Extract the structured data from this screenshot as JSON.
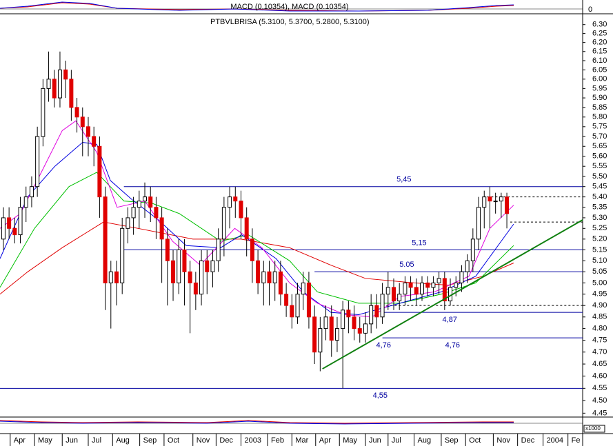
{
  "chart_data": {
    "type": "candlestick",
    "title": "PTBVLBRISA (5.3100, 5.3700, 5.2800, 5.3100)",
    "indicator_title": "MACD (0.10354), MACD (0.10354)",
    "indicator_tick": 0,
    "volume_scale_label": "x1000",
    "log_scale": true,
    "ylim": [
      4.44,
      6.33
    ],
    "yticks": [
      {
        "value": 6.3,
        "label": "6.30"
      },
      6.25,
      {
        "value": 6.2,
        "label": "6.20"
      },
      6.15,
      {
        "value": 6.1,
        "label": "6.10"
      },
      6.05,
      {
        "value": 6.0,
        "label": "6.00"
      },
      5.95,
      {
        "value": 5.9,
        "label": "5.90"
      },
      5.85,
      {
        "value": 5.8,
        "label": "5.80"
      },
      5.75,
      {
        "value": 5.7,
        "label": "5.70"
      },
      5.65,
      {
        "value": 5.6,
        "label": "5.60"
      },
      5.55,
      {
        "value": 5.5,
        "label": "5.50"
      },
      5.45,
      {
        "value": 5.4,
        "label": "5.40"
      },
      5.35,
      {
        "value": 5.3,
        "label": "5.30"
      },
      5.25,
      {
        "value": 5.2,
        "label": "5.20"
      },
      5.15,
      {
        "value": 5.1,
        "label": "5.10"
      },
      5.05,
      {
        "value": 5.0,
        "label": "5.00"
      },
      4.95,
      {
        "value": 4.9,
        "label": "4.90"
      },
      4.85,
      {
        "value": 4.8,
        "label": "4.80"
      },
      4.75,
      {
        "value": 4.7,
        "label": "4.70"
      },
      4.65,
      {
        "value": 4.6,
        "label": "4.60"
      },
      4.55,
      {
        "value": 4.5,
        "label": "4.50"
      },
      4.45
    ],
    "xlim": [
      -0.6,
      102.4
    ],
    "xticks": [
      {
        "value": 1.2,
        "label": "Apr"
      },
      {
        "value": 5.5,
        "label": "May"
      },
      {
        "value": 10.4,
        "label": "Jun"
      },
      {
        "value": 15,
        "label": "Jul"
      },
      {
        "value": 19.3,
        "label": "Aug"
      },
      {
        "value": 24.1,
        "label": "Sep"
      },
      {
        "value": 28.4,
        "label": "Oct"
      },
      {
        "value": 33.5,
        "label": "Nov"
      },
      {
        "value": 37.6,
        "label": "Dec"
      },
      {
        "value": 42,
        "label": "2003"
      },
      {
        "value": 46.7,
        "label": "Feb"
      },
      {
        "value": 51,
        "label": "Mar"
      },
      {
        "value": 55.2,
        "label": "Apr"
      },
      {
        "value": 59.4,
        "label": "May"
      },
      {
        "value": 64,
        "label": "Jun"
      },
      {
        "value": 68,
        "label": "Jul"
      },
      {
        "value": 72.6,
        "label": "Aug"
      },
      {
        "value": 77.4,
        "label": "Sep"
      },
      {
        "value": 81.7,
        "label": "Oct"
      },
      {
        "value": 86.6,
        "label": "Nov"
      },
      {
        "value": 90.9,
        "label": "Dec"
      },
      {
        "value": 95.4,
        "label": "2004"
      },
      {
        "value": 99.8,
        "label": "Fe"
      }
    ],
    "up_color": "#ffffff",
    "down_color": "#e00000",
    "open": [
      5.2,
      5.3,
      5.25,
      5.22,
      5.35,
      5.4,
      5.45,
      5.7,
      5.95,
      6.0,
      5.9,
      6.05,
      6.0,
      5.85,
      5.8,
      5.75,
      5.7,
      5.65,
      5.4,
      5.0,
      5.05,
      5.0,
      5.25,
      5.3,
      5.35,
      5.38,
      5.4,
      5.35,
      5.3,
      5.2,
      5.1,
      5.0,
      5.15,
      5.05,
      5.0,
      4.95,
      5.1,
      5.05,
      5.1,
      5.2,
      5.35,
      5.4,
      5.38,
      5.3,
      5.2,
      5.1,
      5.0,
      5.05,
      5.0,
      5.05,
      4.95,
      4.9,
      4.85,
      4.95,
      5.0,
      4.85,
      4.7,
      4.8,
      4.85,
      4.75,
      4.8,
      4.88,
      4.85,
      4.8,
      4.78,
      4.82,
      4.9,
      4.85,
      4.95,
      4.98,
      4.92,
      4.95,
      5.0,
      4.98,
      4.95,
      5.0,
      4.98,
      5.0,
      5.02,
      4.92,
      4.98,
      5.0,
      5.05,
      5.1,
      5.2,
      5.35,
      5.4,
      5.38,
      5.38,
      5.4
    ],
    "high": [
      5.35,
      5.35,
      5.3,
      5.4,
      5.45,
      5.5,
      5.75,
      6.0,
      6.15,
      6.05,
      6.15,
      6.1,
      6.05,
      5.9,
      5.85,
      5.8,
      5.75,
      5.7,
      5.45,
      5.1,
      5.1,
      5.3,
      5.35,
      5.4,
      5.43,
      5.47,
      5.45,
      5.4,
      5.35,
      5.25,
      5.15,
      5.2,
      5.2,
      5.1,
      5.05,
      5.15,
      5.15,
      5.15,
      5.25,
      5.4,
      5.45,
      5.45,
      5.43,
      5.35,
      5.25,
      5.15,
      5.1,
      5.1,
      5.1,
      5.1,
      5.0,
      4.95,
      5.0,
      5.05,
      5.05,
      4.9,
      4.85,
      4.9,
      4.9,
      4.85,
      4.92,
      4.92,
      4.9,
      4.85,
      4.87,
      4.95,
      4.95,
      5.0,
      5.05,
      5.02,
      5.0,
      5.03,
      5.03,
      5.02,
      5.03,
      5.03,
      5.03,
      5.05,
      5.05,
      5.02,
      5.03,
      5.08,
      5.13,
      5.25,
      5.4,
      5.43,
      5.45,
      5.42,
      5.42,
      5.42
    ],
    "low": [
      5.15,
      5.2,
      5.18,
      5.18,
      5.28,
      5.35,
      5.4,
      5.65,
      5.88,
      5.85,
      5.85,
      5.9,
      5.78,
      5.72,
      5.6,
      5.6,
      5.55,
      5.3,
      4.88,
      4.8,
      4.9,
      4.95,
      5.18,
      5.22,
      5.25,
      5.3,
      5.28,
      5.2,
      5.0,
      4.9,
      4.92,
      4.95,
      4.9,
      4.78,
      4.88,
      4.9,
      4.95,
      4.98,
      5.05,
      5.12,
      5.25,
      5.3,
      5.2,
      5.12,
      5.0,
      4.95,
      4.9,
      4.9,
      4.92,
      4.9,
      4.85,
      4.8,
      4.82,
      4.88,
      4.8,
      4.65,
      4.62,
      4.75,
      4.68,
      4.7,
      4.55,
      4.78,
      4.75,
      4.74,
      4.74,
      4.78,
      4.8,
      4.82,
      4.88,
      4.88,
      4.88,
      4.9,
      4.92,
      4.9,
      4.92,
      4.94,
      4.94,
      4.95,
      4.88,
      4.9,
      4.94,
      4.96,
      5.0,
      5.05,
      5.15,
      5.25,
      5.25,
      5.32,
      5.3,
      5.25
    ],
    "close": [
      5.3,
      5.25,
      5.22,
      5.35,
      5.4,
      5.45,
      5.7,
      5.95,
      6.0,
      5.9,
      6.05,
      6.0,
      5.85,
      5.8,
      5.75,
      5.7,
      5.65,
      5.4,
      5.0,
      5.05,
      5.0,
      5.25,
      5.3,
      5.35,
      5.38,
      5.4,
      5.35,
      5.3,
      5.2,
      5.1,
      5.0,
      5.15,
      5.05,
      5.0,
      4.95,
      5.1,
      5.05,
      5.1,
      5.2,
      5.35,
      5.4,
      5.38,
      5.3,
      5.2,
      5.1,
      5.0,
      5.05,
      5.0,
      5.05,
      4.95,
      4.9,
      4.85,
      4.95,
      5.0,
      4.85,
      4.7,
      4.8,
      4.85,
      4.75,
      4.8,
      4.88,
      4.85,
      4.8,
      4.78,
      4.82,
      4.9,
      4.85,
      4.95,
      4.98,
      4.92,
      4.95,
      5.0,
      4.98,
      4.95,
      5.0,
      4.98,
      5.0,
      5.02,
      4.92,
      4.98,
      5.0,
      5.05,
      5.1,
      5.2,
      5.35,
      5.4,
      5.38,
      5.38,
      5.4,
      5.32
    ],
    "overlays": [
      {
        "color": "#e00000",
        "x": [
          -0.6,
          4.3,
          10.4,
          17.7,
          23.8,
          33.5,
          42,
          50.6,
          57.9,
          64,
          72.6,
          78.7,
          84.8,
          90.2
        ],
        "values": [
          4.95,
          5.05,
          5.16,
          5.28,
          5.25,
          5.2,
          5.2,
          5.16,
          5.08,
          5.02,
          5.0,
          4.99,
          5.03,
          5.09
        ]
      },
      {
        "color": "#00c000",
        "x": [
          -0.6,
          5.5,
          11.6,
          16.5,
          21.3,
          26.2,
          31.1,
          38.4,
          43.3,
          50.6,
          55.5,
          62.8,
          70.1,
          77.4,
          83.5,
          90.2
        ],
        "values": [
          4.98,
          5.25,
          5.45,
          5.52,
          5.38,
          5.37,
          5.32,
          5.19,
          5.22,
          5.1,
          4.96,
          4.91,
          4.91,
          4.95,
          5.0,
          5.17
        ]
      },
      {
        "color": "#0000e0",
        "x": [
          -0.6,
          4.3,
          9.1,
          14,
          16.5,
          18.9,
          22.6,
          27.4,
          32.3,
          38.4,
          42.1,
          48.2,
          53,
          57.9,
          62.8,
          70.1,
          77.4,
          83.5,
          90.2
        ],
        "values": [
          5.11,
          5.4,
          5.55,
          5.67,
          5.66,
          5.48,
          5.39,
          5.29,
          5.17,
          5.16,
          5.22,
          5.11,
          4.96,
          4.87,
          4.86,
          4.91,
          4.96,
          5.03,
          5.27
        ]
      },
      {
        "color": "#e000e0",
        "x": [
          -0.6,
          3,
          6.7,
          10.4,
          12.8,
          16.5,
          20.1,
          25,
          29.9,
          34.8,
          40.9,
          45.7,
          50.6,
          55.5,
          60.4,
          65.2,
          70.1,
          76.2,
          82.3,
          86,
          90.2
        ],
        "values": [
          5.25,
          5.32,
          5.52,
          5.73,
          5.78,
          5.62,
          5.35,
          5.38,
          5.19,
          5.08,
          5.25,
          5.16,
          5.0,
          4.91,
          4.86,
          4.85,
          4.94,
          4.96,
          5.03,
          5.25,
          5.36
        ]
      }
    ],
    "levels": [
      {
        "value": 5.45,
        "label": "5,45",
        "start": 21.3,
        "label_x": 69.5
      },
      {
        "value": 5.15,
        "label": "5,15",
        "start": 21.3,
        "label_x": 72.2
      },
      {
        "value": 5.05,
        "label": "5.05",
        "start": 55,
        "label_x": 70
      },
      {
        "value": 4.87,
        "label": "4,87",
        "start": 67,
        "label_x": 77.6
      },
      {
        "value": 4.76,
        "label": "4,76",
        "start": 67,
        "label_x": 65.9
      },
      {
        "value": 4.55,
        "label": "4,55",
        "start": -0.6,
        "label_x": 65.3
      }
    ],
    "annotations": [
      {
        "text": "4,76",
        "x": 78.1,
        "y": 4.76
      }
    ],
    "dashed_levels": [
      {
        "value": 5.4,
        "start": 85.5
      },
      {
        "value": 5.28,
        "start": 89.6
      },
      {
        "value": 4.9,
        "start": 67.7
      }
    ],
    "trendline": {
      "color": "#108010",
      "x": [
        56.4,
        102.4
      ],
      "values": [
        4.63,
        5.29
      ]
    }
  }
}
